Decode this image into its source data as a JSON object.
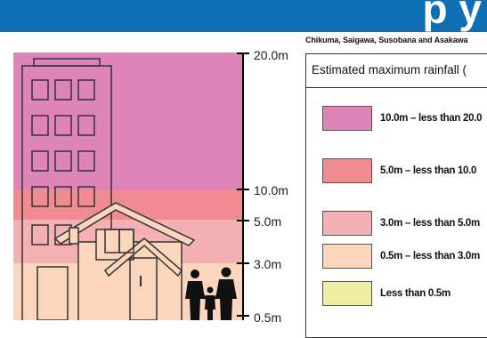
{
  "header": {
    "banner_text": "p y",
    "banner_color": "#0e6fb4"
  },
  "depth_scale": {
    "ticks": [
      {
        "label": "20.0m"
      },
      {
        "label": "10.0m"
      },
      {
        "label": "5.0m"
      },
      {
        "label": "3.0m"
      },
      {
        "label": "0.5m"
      }
    ]
  },
  "area_caption": "Chikuma, Saigawa, Susobana and Asakawa",
  "legend": {
    "title": "Estimated maximum rainfall (",
    "items": [
      {
        "label": "10.0m – less than 20.0",
        "color": "#df84b9"
      },
      {
        "label": "5.0m – less than 10.0",
        "color": "#ef8b91"
      },
      {
        "label": "3.0m – less than 5.0m",
        "color": "#f4b1b4"
      },
      {
        "label": "0.5m – less than 3.0m",
        "color": "#fbd6bd"
      },
      {
        "label": "Less than 0.5m",
        "color": "#eeeda0"
      }
    ]
  },
  "bands": [
    {
      "name": "10.0m – less than 20.0",
      "color": "#df84b9"
    },
    {
      "name": "5.0m – less than 10.0",
      "color": "#ef8b91"
    },
    {
      "name": "3.0m – less than 5.0m",
      "color": "#f4b1b4"
    },
    {
      "name": "0.5m – less than 3.0m",
      "color": "#fbd6bd"
    }
  ]
}
